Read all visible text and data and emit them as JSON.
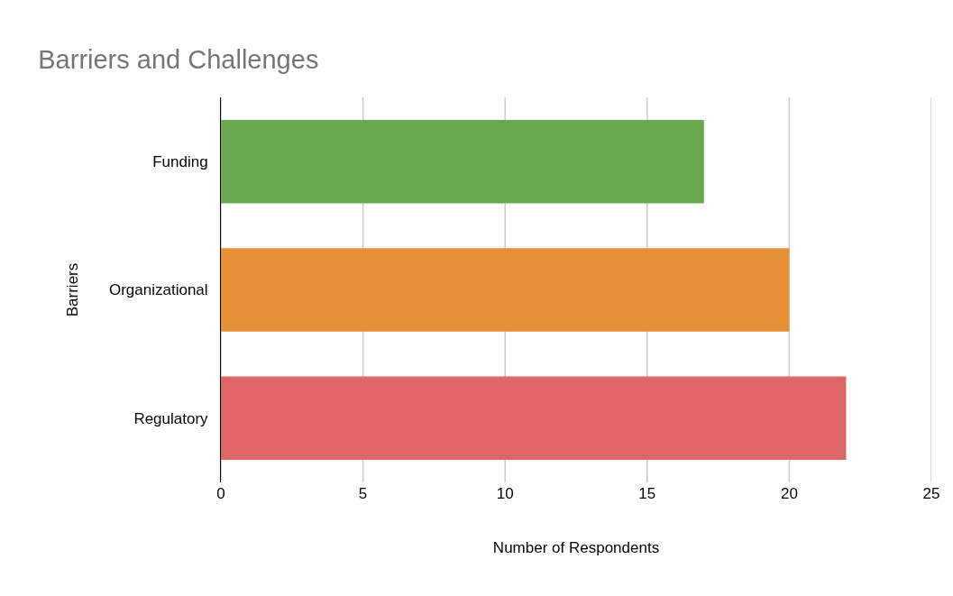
{
  "chart_data": {
    "type": "bar",
    "orientation": "horizontal",
    "title": "Barriers and Challenges",
    "xlabel": "Number of Respondents",
    "ylabel": "Barriers",
    "categories": [
      "Funding",
      "Organizational",
      "Regulatory"
    ],
    "values": [
      17,
      20,
      22
    ],
    "colors": [
      "#6aa84f",
      "#e69138",
      "#e06666"
    ],
    "xlim": [
      0,
      25
    ],
    "xticks": [
      0,
      5,
      10,
      15,
      20,
      25
    ],
    "grid": "x"
  }
}
